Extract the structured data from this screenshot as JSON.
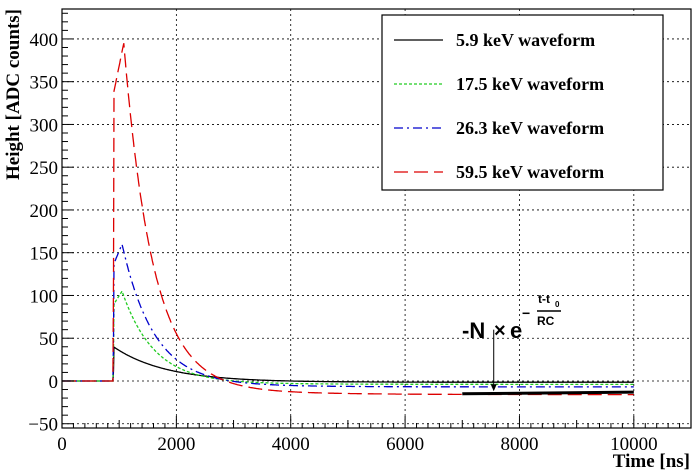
{
  "chart_data": {
    "type": "line",
    "title": "",
    "xlabel": "Time [ns]",
    "ylabel": "Height [ADC counts]",
    "xlim": [
      0,
      11000
    ],
    "ylim": [
      -55,
      435
    ],
    "x_ticks": [
      0,
      2000,
      4000,
      6000,
      8000,
      10000
    ],
    "y_ticks": [
      -50,
      0,
      50,
      100,
      150,
      200,
      250,
      300,
      350,
      400
    ],
    "grid": true,
    "legend_position": "top-right",
    "series": [
      {
        "name": "5.9 keV waveform",
        "color": "#000000",
        "style": "solid",
        "baseline_end": 900,
        "peak_time": 900,
        "peak": 40,
        "tau": 900,
        "undershoot": -1.5,
        "undershoot_tau": 3000,
        "undershoot_start": 3000
      },
      {
        "name": "17.5 keV waveform",
        "color": "#22cc22",
        "style": "dotted",
        "baseline_end": 900,
        "peak_time": 1050,
        "peak": 105,
        "tau": 550,
        "undershoot": -4,
        "undershoot_tau": 3000,
        "undershoot_start": 3200
      },
      {
        "name": "26.3 keV waveform",
        "color": "#0000cc",
        "style": "dashdot",
        "baseline_end": 900,
        "peak_time": 1050,
        "peak": 160,
        "tau": 550,
        "undershoot": -7,
        "undershoot_tau": 3000,
        "undershoot_start": 3200
      },
      {
        "name": "59.5 keV waveform",
        "color": "#dd0000",
        "style": "dashed",
        "baseline_end": 900,
        "peak_time": 1080,
        "peak": 395,
        "tau": 500,
        "undershoot": -16,
        "undershoot_tau": 3000,
        "undershoot_start": 3200
      }
    ],
    "fit_line": {
      "x": [
        7000,
        10000
      ],
      "y": [
        -15,
        -13
      ],
      "color": "#000000"
    },
    "annotation": {
      "base": "-N",
      "times": "×",
      "exp_base": "e",
      "minus": "−",
      "numerator": "t-t",
      "numerator_sub": "0",
      "denominator": "RC",
      "arrow_x": 7550,
      "arrow_y_from": 60,
      "arrow_y_to": -12
    }
  }
}
